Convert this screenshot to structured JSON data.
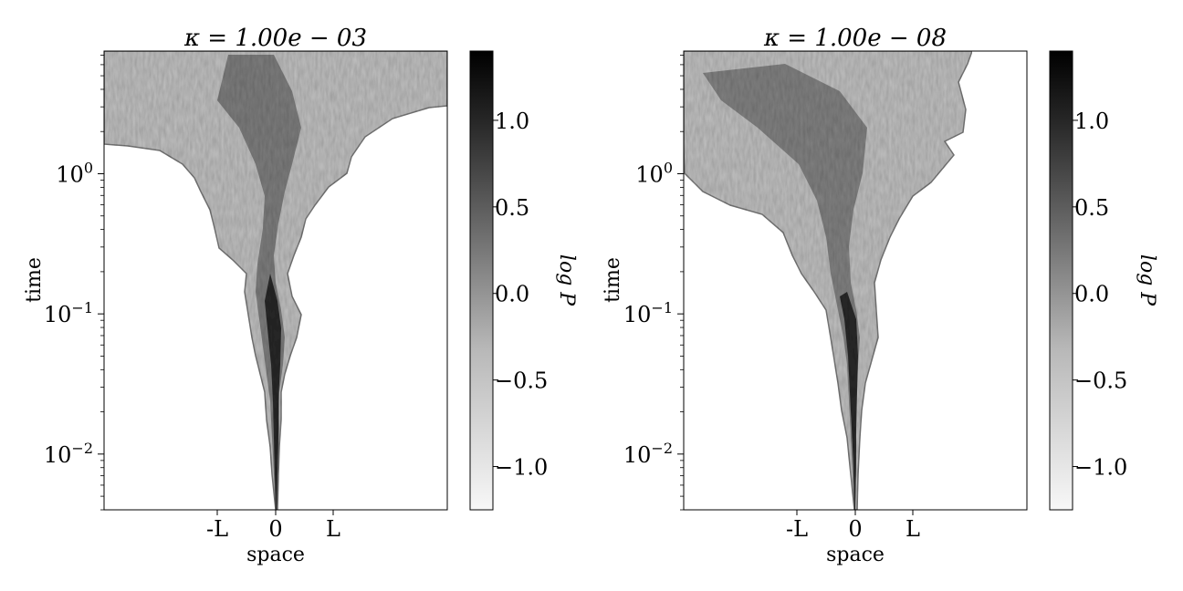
{
  "chart_data": [
    {
      "type": "heatmap",
      "title": "κ = 1.00e − 03",
      "xlabel": "space",
      "ylabel": "time",
      "x_tick_labels": [
        "-L",
        "0",
        "L"
      ],
      "y_scale": "log",
      "ylim": [
        0.004,
        7.5
      ],
      "y_ticks": [
        {
          "value": 0.01,
          "base": "10",
          "exp": "−2"
        },
        {
          "value": 0.1,
          "base": "10",
          "exp": "−1"
        },
        {
          "value": 1,
          "base": "10",
          "exp": "0"
        }
      ],
      "colorbar": {
        "label": "log P",
        "range": [
          -1.25,
          1.4
        ],
        "ticks": [
          {
            "value": -1.0,
            "label": "−1.0"
          },
          {
            "value": -0.5,
            "label": "−0.5"
          },
          {
            "value": 0.0,
            "label": "0.0"
          },
          {
            "value": 0.5,
            "label": "0.5"
          },
          {
            "value": 1.0,
            "label": "1.0"
          }
        ]
      },
      "grid": false
    },
    {
      "type": "heatmap",
      "title": "κ = 1.00e − 08",
      "xlabel": "space",
      "ylabel": "time",
      "x_tick_labels": [
        "-L",
        "0",
        "L"
      ],
      "y_scale": "log",
      "ylim": [
        0.004,
        7.5
      ],
      "y_ticks": [
        {
          "value": 0.01,
          "base": "10",
          "exp": "−2"
        },
        {
          "value": 0.1,
          "base": "10",
          "exp": "−1"
        },
        {
          "value": 1,
          "base": "10",
          "exp": "0"
        }
      ],
      "colorbar": {
        "label": "log P",
        "range": [
          -1.25,
          1.4
        ],
        "ticks": [
          {
            "value": -1.0,
            "label": "−1.0"
          },
          {
            "value": -0.5,
            "label": "−0.5"
          },
          {
            "value": 0.0,
            "label": "0.0"
          },
          {
            "value": 0.5,
            "label": "0.5"
          },
          {
            "value": 1.0,
            "label": "1.0"
          }
        ]
      },
      "grid": false
    }
  ],
  "colors": {
    "cmap_light": "#f7f7f7",
    "cmap_dark": "#000000",
    "outline": "#7a7a7a"
  }
}
